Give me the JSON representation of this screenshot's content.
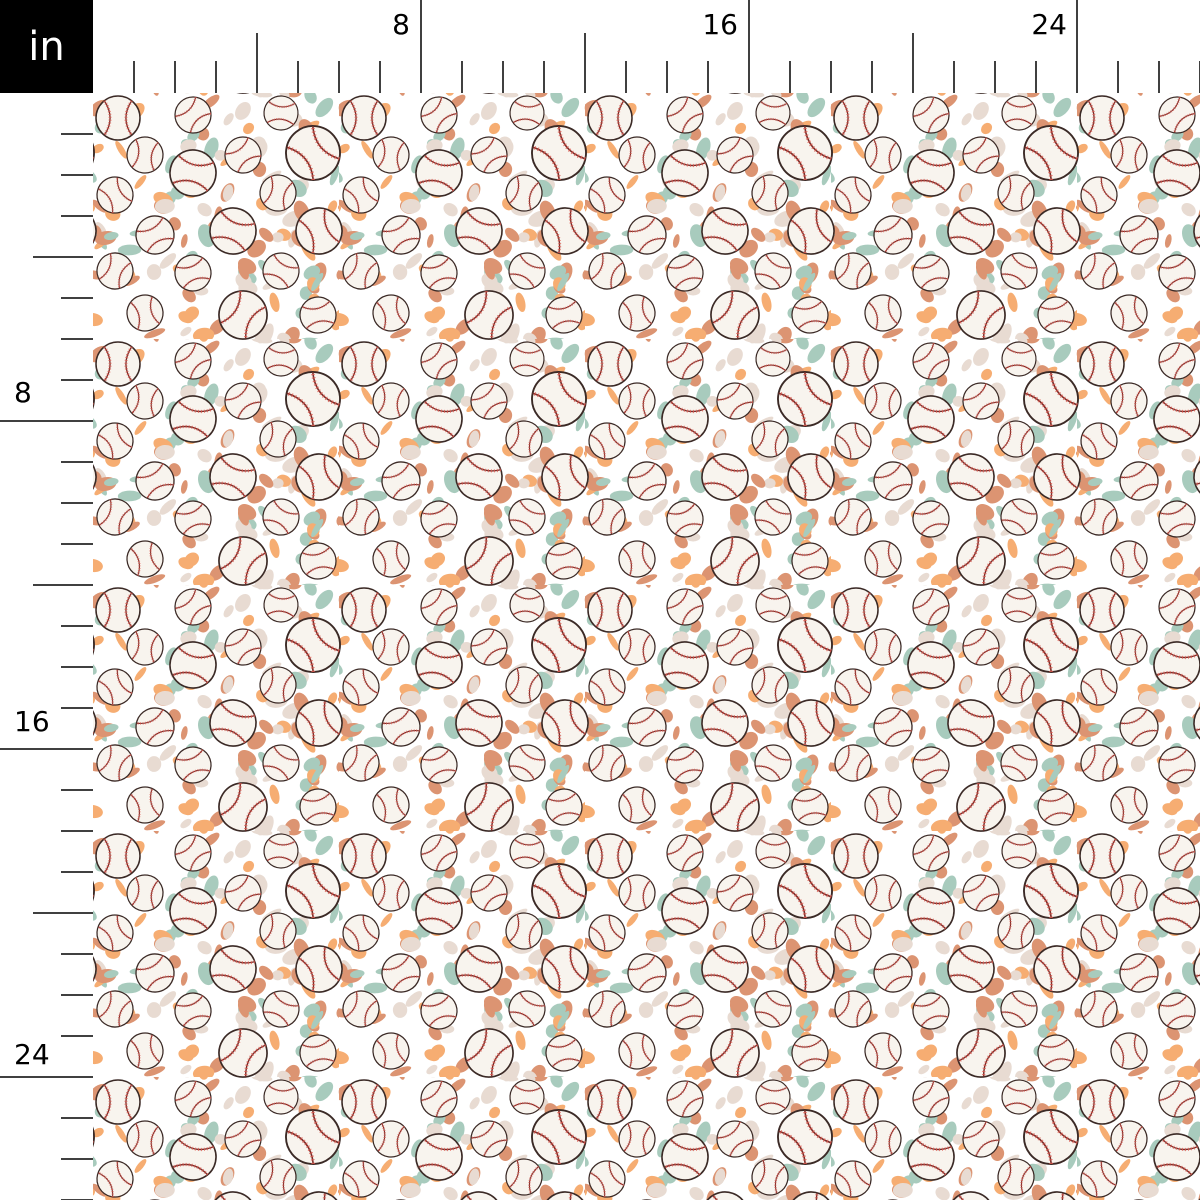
{
  "ruler": {
    "unit": "in",
    "top_labels": [
      "8",
      "16",
      "24"
    ],
    "left_labels": [
      "8",
      "16",
      "24"
    ],
    "pixels_per_unit_note_hidden": null
  },
  "fabric": {
    "motif": "baseball",
    "colors": {
      "background": "#ffffff",
      "sage": "#a8cbbd",
      "orange": "#f6ad72",
      "terracotta": "#dc9472",
      "beige": "#e8dbd2",
      "ball_fill": "#f8f4ee",
      "ball_outline": "#3b2a26",
      "seam": "#7b2e2a",
      "stitch": "#e25c52"
    }
  }
}
